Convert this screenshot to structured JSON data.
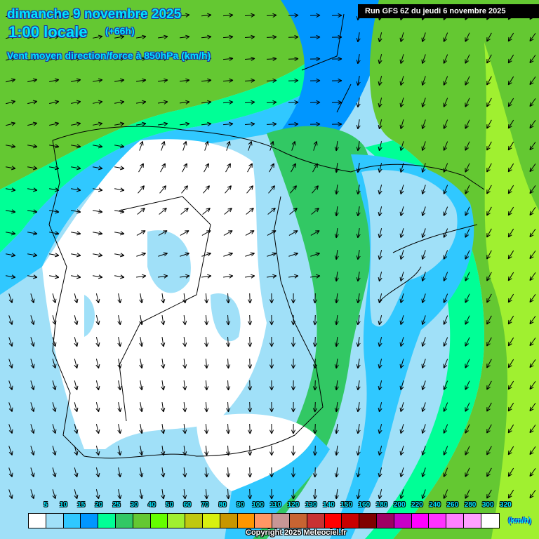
{
  "header": {
    "date": "dimanche 9 novembre 2025",
    "hour": "1:00 locale",
    "offset": "(+66h)",
    "parameter": "Vent moyen direction/force à 850hPa (km/h)",
    "run": "Run GFS 6Z du jeudi 6 novembre 2025"
  },
  "legend": {
    "unit": "(km/h)",
    "ticks": [
      "5",
      "10",
      "15",
      "20",
      "25",
      "30",
      "40",
      "50",
      "60",
      "70",
      "80",
      "90",
      "100",
      "110",
      "120",
      "130",
      "140",
      "150",
      "160",
      "180",
      "200",
      "220",
      "240",
      "260",
      "280",
      "300",
      "320"
    ],
    "colors": [
      "#ffffff",
      "#a0e0f8",
      "#30c8ff",
      "#0096ff",
      "#00ff96",
      "#32c864",
      "#64c832",
      "#64ff00",
      "#a0f030",
      "#c0c810",
      "#d8f010",
      "#c89600",
      "#ff9600",
      "#ff9664",
      "#c89696",
      "#c86432",
      "#c83232",
      "#ff0000",
      "#c80000",
      "#800000",
      "#a00064",
      "#c800c8",
      "#ff00ff",
      "#ff32ff",
      "#ff80ff",
      "#ffa0ff",
      "#ffffff"
    ]
  },
  "copyright": "Copyright 2025 Meteociel.fr"
}
